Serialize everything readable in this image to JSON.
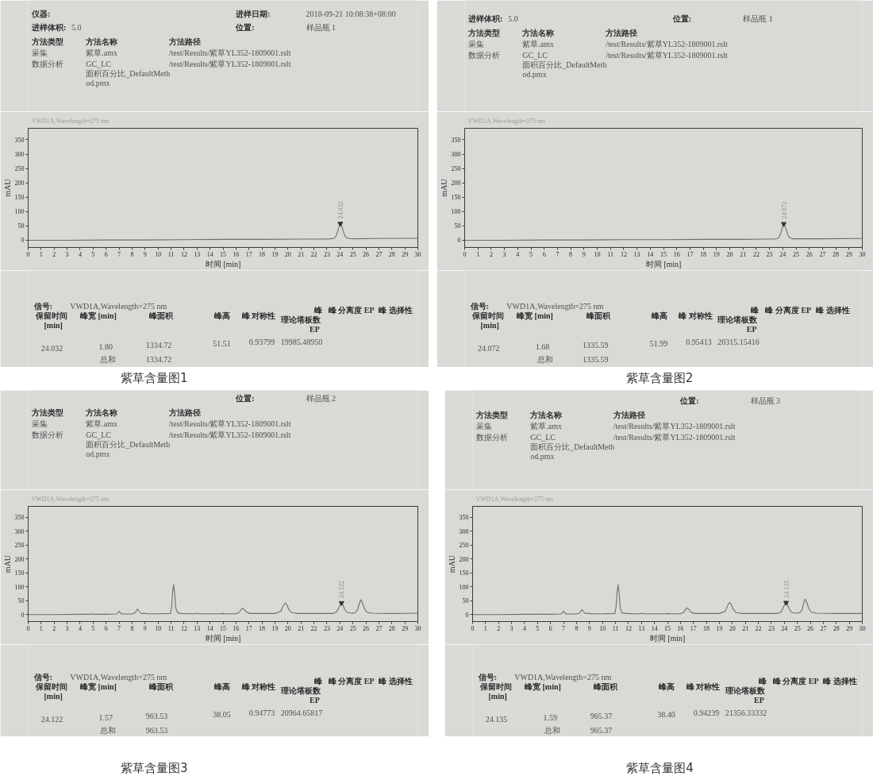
{
  "chart_data": [
    {
      "type": "line",
      "title": "紫草含量图1",
      "subtitle": "VWD1A,Wavelength=275 nm",
      "xlabel": "时间 [min]",
      "ylabel": "mAU",
      "color": "#6e6e6e",
      "xlim": [
        0,
        30
      ],
      "ylim": [
        -25,
        390
      ],
      "xticks": [
        0,
        1,
        2,
        3,
        4,
        5,
        6,
        7,
        8,
        9,
        10,
        11,
        12,
        13,
        14,
        15,
        16,
        17,
        18,
        19,
        20,
        21,
        22,
        23,
        24,
        25,
        26,
        27,
        28,
        29,
        30
      ],
      "yticks": [
        0,
        50,
        100,
        150,
        200,
        250,
        300,
        350
      ],
      "x": [
        0,
        3,
        6,
        9,
        12,
        15,
        18,
        21,
        22.5,
        23.3,
        23.55,
        23.7,
        23.8,
        23.9,
        23.97,
        24.032,
        24.1,
        24.18,
        24.27,
        24.37,
        24.5,
        24.7,
        25.0,
        27,
        30
      ],
      "values": [
        0,
        0,
        1,
        1,
        2,
        3,
        3,
        4,
        4,
        5,
        7,
        14,
        26,
        42,
        53,
        58,
        54,
        44,
        30,
        17,
        9,
        6,
        5,
        6,
        7
      ],
      "annotations": [
        "仪器:",
        "进样日期:",
        "2018-09-21 10:08:38+08:00",
        "进样体积:",
        "5.0",
        "位置:",
        "样品瓶 1",
        "方法类型",
        "方法名称",
        "方法路径",
        "采集",
        "紫草.amx",
        "/test/Results/紫草YL352-1809001.rslt",
        "数据分析",
        "GC_LC",
        "/test/Results/紫草YL352-1809001.rslt",
        "面积百分比_DefaultMeth",
        "od.pmx",
        "信号:",
        "VWD1A,Wavelength=275 nm",
        "保留时间",
        "[min]",
        "峰宽 [min]",
        "峰面积",
        "峰高",
        "峰 对称性",
        "峰",
        "理论塔板数",
        "EP",
        "峰 分离度 EP",
        "峰 选择性",
        "24.032",
        "1.80",
        "1334.72",
        "51.51",
        "0.93799",
        "19985.48950",
        "总和",
        "1334.72",
        {
          "text": "24.032",
          "x": 24.032,
          "y": 58
        }
      ]
    },
    {
      "type": "line",
      "title": "紫草含量图2",
      "subtitle": "VWD1A,Wavelength=275 nm",
      "xlabel": "时间 [min]",
      "ylabel": "mAU",
      "color": "#6e6e6e",
      "xlim": [
        0,
        30
      ],
      "ylim": [
        -25,
        390
      ],
      "xticks": [
        0,
        1,
        2,
        3,
        4,
        5,
        6,
        7,
        8,
        9,
        10,
        11,
        12,
        13,
        14,
        15,
        16,
        17,
        18,
        19,
        20,
        21,
        22,
        23,
        24,
        25,
        26,
        27,
        28,
        29,
        30
      ],
      "yticks": [
        0,
        50,
        100,
        150,
        200,
        250,
        300,
        350
      ],
      "x": [
        0,
        3,
        6,
        9,
        12,
        15,
        18,
        21,
        22.5,
        23.35,
        23.6,
        23.75,
        23.85,
        23.95,
        24.01,
        24.072,
        24.14,
        24.22,
        24.31,
        24.41,
        24.54,
        24.74,
        25.05,
        27,
        30
      ],
      "values": [
        0,
        0,
        1,
        1,
        2,
        2,
        3,
        3,
        4,
        4,
        6,
        13,
        25,
        41,
        52,
        57,
        53,
        43,
        29,
        16,
        8,
        5,
        5,
        5,
        6
      ],
      "annotations": [
        "进样体积:",
        "5.0",
        "位置:",
        "样品瓶 1",
        "方法类型",
        "方法名称",
        "方法路径",
        "采集",
        "紫草.amx",
        "/test/Results/紫草YL352-1809001.rslt",
        "数据分析",
        "GC_LC",
        "/test/Results/紫草YL352-1809001.rslt",
        "面积百分比_DefaultMeth",
        "od.pmx",
        "信号:",
        "VWD1A,Wavelength=275 nm",
        "保留时间",
        "[min]",
        "峰宽 [min]",
        "峰面积",
        "峰高",
        "峰 对称性",
        "峰",
        "理论塔板数",
        "EP",
        "峰 分离度 EP",
        "峰 选择性",
        "24.072",
        "1.68",
        "1335.59",
        "51.99",
        "0.95413",
        "20315.15416",
        "总和",
        "1335.59",
        {
          "text": "24.072",
          "x": 24.072,
          "y": 57
        }
      ]
    },
    {
      "type": "line",
      "title": "紫草含量图3",
      "subtitle": "VWD1A,Wavelength=275 nm",
      "xlabel": "时间 [min]",
      "ylabel": "mAU",
      "color": "#6e6e6e",
      "xlim": [
        0,
        30
      ],
      "ylim": [
        -25,
        390
      ],
      "xticks": [
        0,
        1,
        2,
        3,
        4,
        5,
        6,
        7,
        8,
        9,
        10,
        11,
        12,
        13,
        14,
        15,
        16,
        17,
        18,
        19,
        20,
        21,
        22,
        23,
        24,
        25,
        26,
        27,
        28,
        29,
        30
      ],
      "yticks": [
        0,
        50,
        100,
        150,
        200,
        250,
        300,
        350
      ],
      "x": [
        0,
        2,
        4,
        4.75,
        4.9,
        5.05,
        6,
        6.8,
        6.9,
        7.0,
        7.1,
        7.25,
        8.0,
        8.25,
        8.33,
        8.42,
        8.52,
        8.65,
        8.8,
        8.9,
        9.0,
        9.2,
        10,
        10.95,
        11.05,
        11.12,
        11.2,
        11.28,
        11.36,
        11.5,
        11.8,
        12.5,
        12.85,
        13.0,
        13.15,
        14,
        14.85,
        15.0,
        15.15,
        16.0,
        16.25,
        16.4,
        16.5,
        16.62,
        16.8,
        17.1,
        17.5,
        19.0,
        19.45,
        19.6,
        19.72,
        19.8,
        19.9,
        20.05,
        20.3,
        20.8,
        22,
        23.5,
        23.75,
        23.9,
        24.02,
        24.122,
        24.22,
        24.36,
        24.55,
        24.85,
        25.15,
        25.35,
        25.48,
        25.6,
        25.72,
        25.88,
        26.1,
        26.5,
        28,
        30
      ],
      "values": [
        0,
        0,
        1,
        1,
        3,
        1,
        1,
        2,
        6,
        12,
        6,
        2,
        2,
        7,
        14,
        20,
        13,
        5,
        3,
        6,
        4,
        3,
        3,
        4,
        30,
        80,
        108,
        75,
        25,
        6,
        4,
        3,
        3,
        5,
        3,
        3,
        3,
        4,
        3,
        3,
        8,
        18,
        23,
        19,
        9,
        4,
        4,
        4,
        12,
        28,
        39,
        42,
        36,
        20,
        7,
        4,
        4,
        4,
        10,
        24,
        36,
        42,
        36,
        20,
        8,
        5,
        6,
        16,
        38,
        54,
        44,
        22,
        8,
        5,
        4,
        5
      ],
      "annotations": [
        "位置:",
        "样品瓶 2",
        "方法类型",
        "方法名称",
        "方法路径",
        "采集",
        "紫草.amx",
        "/test/Results/紫草YL352-1809001.rslt",
        "数据分析",
        "GC_LC",
        "/test/Results/紫草YL352-1809001.rslt",
        "面积百分比_DefaultMeth",
        "od.pmx",
        "信号:",
        "VWD1A,Wavelength=275 nm",
        "保留时间",
        "[min]",
        "峰宽 [min]",
        "峰面积",
        "峰高",
        "峰 对称性",
        "峰",
        "理论塔板数",
        "EP",
        "峰 分离度 EP",
        "峰 选择性",
        "24.122",
        "1.57",
        "963.53",
        "38.05",
        "0.94773",
        "20964.65817",
        "总和",
        "963.53",
        {
          "text": "24.122",
          "x": 24.122,
          "y": 42
        }
      ]
    },
    {
      "type": "line",
      "title": "紫草含量图4",
      "subtitle": "VWD1A,Wavelength=275 nm",
      "xlabel": "时间 [min]",
      "ylabel": "mAU",
      "color": "#6e6e6e",
      "xlim": [
        0,
        30
      ],
      "ylim": [
        -25,
        390
      ],
      "xticks": [
        0,
        1,
        2,
        3,
        4,
        5,
        6,
        7,
        8,
        9,
        10,
        11,
        12,
        13,
        14,
        15,
        16,
        17,
        18,
        19,
        20,
        21,
        22,
        23,
        24,
        25,
        26,
        27,
        28,
        29,
        30
      ],
      "yticks": [
        0,
        50,
        100,
        150,
        200,
        250,
        300,
        350
      ],
      "x": [
        0,
        2,
        4,
        4.75,
        4.9,
        5.05,
        6,
        6.8,
        6.9,
        7.0,
        7.1,
        7.25,
        8.0,
        8.25,
        8.33,
        8.42,
        8.52,
        8.65,
        8.8,
        8.9,
        9.0,
        9.2,
        10,
        10.95,
        11.05,
        11.12,
        11.2,
        11.28,
        11.36,
        11.5,
        11.8,
        12.5,
        12.85,
        13.0,
        13.15,
        14,
        14.85,
        15.0,
        15.15,
        16.0,
        16.25,
        16.4,
        16.5,
        16.62,
        16.8,
        17.1,
        17.5,
        19.0,
        19.45,
        19.6,
        19.72,
        19.8,
        19.9,
        20.05,
        20.3,
        20.8,
        22,
        23.5,
        23.76,
        23.91,
        24.03,
        24.135,
        24.24,
        24.37,
        24.56,
        24.85,
        25.15,
        25.35,
        25.48,
        25.6,
        25.72,
        25.88,
        26.1,
        26.5,
        28,
        30
      ],
      "values": [
        0,
        0,
        1,
        1,
        2,
        1,
        1,
        2,
        6,
        12,
        6,
        2,
        2,
        6,
        12,
        18,
        12,
        5,
        4,
        5,
        4,
        3,
        3,
        4,
        30,
        80,
        108,
        76,
        25,
        6,
        4,
        3,
        3,
        5,
        3,
        3,
        3,
        4,
        3,
        3,
        8,
        19,
        24,
        20,
        9,
        4,
        4,
        4,
        12,
        29,
        40,
        43,
        37,
        20,
        7,
        4,
        4,
        4,
        10,
        25,
        37,
        43,
        37,
        20,
        8,
        5,
        6,
        16,
        39,
        56,
        45,
        22,
        8,
        5,
        4,
        4
      ],
      "annotations": [
        "位置:",
        "样品瓶 3",
        "方法类型",
        "方法名称",
        "方法路径",
        "采集",
        "紫草.amx",
        "/test/Results/紫草YL352-1809001.rslt",
        "数据分析",
        "GC_LC",
        "/test/Results/紫草YL352-1809001.rslt",
        "面积百分比_DefaultMeth",
        "od.pmx",
        "信号:",
        "VWD1A,Wavelength=275 nm",
        "保留时间",
        "[min]",
        "峰宽 [min]",
        "峰面积",
        "峰高",
        "峰 对称性",
        "峰",
        "理论塔板数",
        "EP",
        "峰 分离度 EP",
        "峰 选择性",
        "24.135",
        "1.59",
        "965.37",
        "38.40",
        "0.94239",
        "21356.33332",
        "总和",
        "965.37",
        {
          "text": "24.135",
          "x": 24.135,
          "y": 43
        }
      ]
    }
  ]
}
